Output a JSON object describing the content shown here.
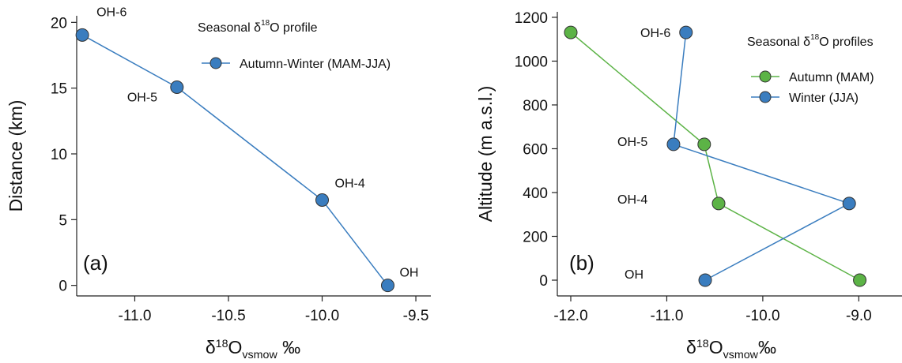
{
  "chart_data": [
    {
      "type": "line",
      "panel_label": "(a)",
      "xlabel": [
        "δ",
        "18",
        "O",
        "vsmow",
        " ‰"
      ],
      "ylabel": "Distance (km)",
      "legend_title": [
        "Seasonal δ",
        "18",
        "O profile"
      ],
      "xlim": [
        -11.31,
        -9.42
      ],
      "ylim": [
        -0.8,
        20.5
      ],
      "xticks": [
        {
          "value": -11,
          "label": "-11.0"
        },
        -10.5,
        {
          "value": -10,
          "label": "-10.0"
        },
        -9.5
      ],
      "yticks": [
        0,
        5,
        10,
        15,
        20
      ],
      "point_labels": [
        "OH-6",
        "OH-5",
        "OH-4",
        "OH"
      ],
      "series": [
        {
          "name": "Autumn-Winter (MAM-JJA)",
          "color": "#3a7dbf",
          "x": [
            -11.28,
            -10.775,
            -10.0,
            -9.65
          ],
          "values": [
            19.04,
            15.07,
            6.49,
            0
          ]
        }
      ]
    },
    {
      "type": "line",
      "panel_label": "(b)",
      "xlabel": [
        "δ",
        "18",
        "O",
        "vsmow",
        "‰"
      ],
      "ylabel": "Altitude (m a.s.l.)",
      "legend_title": [
        "Seasonal δ",
        "18",
        "O profiles"
      ],
      "xlim": [
        -12.14,
        -8.55
      ],
      "ylim": [
        -72,
        1225
      ],
      "xticks": [
        {
          "value": -12,
          "label": "-12.0"
        },
        {
          "value": -11,
          "label": "-11.0"
        },
        {
          "value": -10,
          "label": "-10.0"
        },
        {
          "value": -9,
          "label": "-9.0"
        }
      ],
      "yticks": [
        0,
        200,
        400,
        600,
        800,
        1000,
        1200
      ],
      "point_labels": [
        "OH-6",
        "OH-5",
        "OH-4",
        "OH"
      ],
      "series": [
        {
          "name": "Autumn (MAM)",
          "color": "#5cb346",
          "x": [
            -12.0,
            -10.61,
            -10.46,
            -8.99
          ],
          "values": [
            1131,
            620,
            350,
            0
          ]
        },
        {
          "name": "Winter (JJA)",
          "color": "#3a7dbf",
          "x": [
            -10.8,
            -10.93,
            -9.1,
            -10.6
          ],
          "values": [
            1131,
            620,
            350,
            0
          ]
        }
      ]
    }
  ]
}
